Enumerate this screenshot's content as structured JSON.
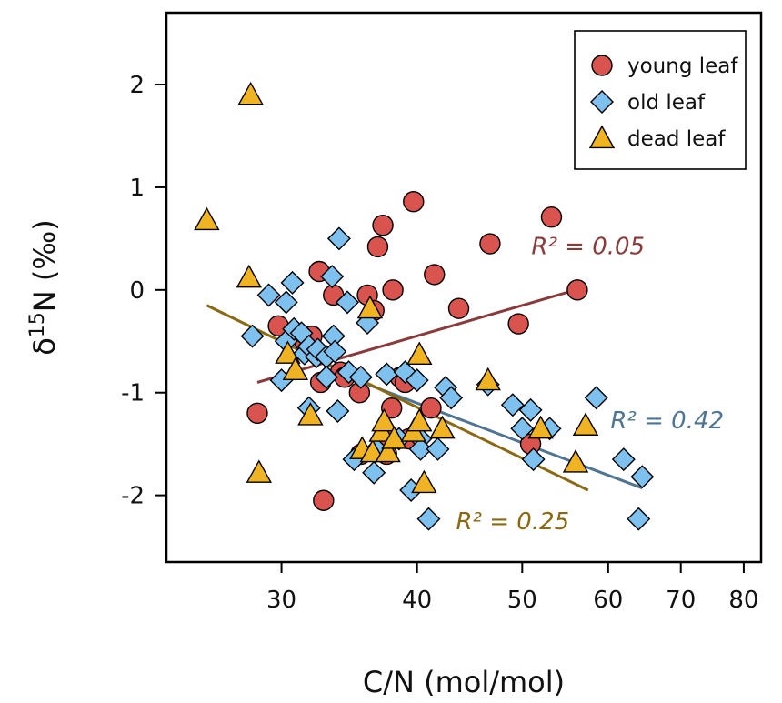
{
  "chart_data": {
    "type": "scatter",
    "xlabel": "C/N (mol/mol)",
    "ylabel_parts": [
      "δ",
      "15",
      "N (‰)"
    ],
    "x_scale": "log",
    "xlim": [
      23.5,
      83
    ],
    "ylim": [
      -2.65,
      2.7
    ],
    "x_ticks": [
      30,
      40,
      50,
      60,
      70,
      80
    ],
    "y_ticks": [
      2,
      1,
      0,
      -1,
      -2
    ],
    "legend_position": "top-right",
    "series": [
      {
        "name": "young leaf",
        "marker": "circle",
        "color": "#d9534f",
        "points": [
          [
            28.5,
            -1.2
          ],
          [
            29.8,
            -0.35
          ],
          [
            31.5,
            -0.5
          ],
          [
            32.0,
            -0.45
          ],
          [
            32.5,
            0.18
          ],
          [
            32.6,
            -0.9
          ],
          [
            32.8,
            -2.05
          ],
          [
            33.5,
            -0.05
          ],
          [
            34.0,
            -0.8
          ],
          [
            34.3,
            -0.85
          ],
          [
            35.4,
            -1.0
          ],
          [
            35.5,
            -1.6
          ],
          [
            36.0,
            -0.05
          ],
          [
            36.5,
            -0.2
          ],
          [
            36.8,
            0.42
          ],
          [
            37.2,
            0.63
          ],
          [
            37.5,
            -1.6
          ],
          [
            37.7,
            -1.45
          ],
          [
            37.9,
            -1.15
          ],
          [
            38.0,
            0.0
          ],
          [
            38.6,
            -0.85
          ],
          [
            39.0,
            -0.9
          ],
          [
            39.3,
            -1.45
          ],
          [
            39.7,
            0.86
          ],
          [
            41.2,
            -1.15
          ],
          [
            41.5,
            0.15
          ],
          [
            43.7,
            -0.18
          ],
          [
            46.7,
            0.45
          ],
          [
            49.6,
            -0.33
          ],
          [
            50.9,
            -1.5
          ],
          [
            53.2,
            0.71
          ],
          [
            56.2,
            0.0
          ]
        ]
      },
      {
        "name": "old leaf",
        "marker": "diamond",
        "color": "#7ec0ee",
        "points": [
          [
            28.2,
            -0.45
          ],
          [
            29.2,
            -0.05
          ],
          [
            30.0,
            -0.88
          ],
          [
            30.3,
            -0.5
          ],
          [
            30.3,
            -0.12
          ],
          [
            30.7,
            0.07
          ],
          [
            30.8,
            -0.38
          ],
          [
            31.3,
            -0.42
          ],
          [
            31.5,
            -0.62
          ],
          [
            31.8,
            -0.55
          ],
          [
            31.8,
            -1.15
          ],
          [
            32.3,
            -0.65
          ],
          [
            32.4,
            -0.58
          ],
          [
            33.0,
            -0.65
          ],
          [
            33.0,
            -0.85
          ],
          [
            33.4,
            0.13
          ],
          [
            33.5,
            -0.45
          ],
          [
            33.6,
            -0.6
          ],
          [
            33.8,
            -1.18
          ],
          [
            33.9,
            0.5
          ],
          [
            34.5,
            -0.12
          ],
          [
            34.6,
            -0.8
          ],
          [
            35.0,
            -1.65
          ],
          [
            35.5,
            -0.85
          ],
          [
            36.0,
            -0.32
          ],
          [
            36.5,
            -1.78
          ],
          [
            36.7,
            -1.55
          ],
          [
            37.5,
            -0.82
          ],
          [
            38.5,
            -1.45
          ],
          [
            39.0,
            -0.8
          ],
          [
            39.5,
            -1.95
          ],
          [
            40.0,
            -0.88
          ],
          [
            40.3,
            -1.45
          ],
          [
            40.3,
            -1.55
          ],
          [
            41.0,
            -2.23
          ],
          [
            41.8,
            -1.55
          ],
          [
            42.5,
            -0.95
          ],
          [
            43.0,
            -1.05
          ],
          [
            46.5,
            -0.92
          ],
          [
            49.0,
            -1.12
          ],
          [
            50.0,
            -1.35
          ],
          [
            50.9,
            -1.17
          ],
          [
            51.2,
            -1.65
          ],
          [
            53.0,
            -1.35
          ],
          [
            58.5,
            -1.05
          ],
          [
            62.0,
            -1.65
          ],
          [
            64.0,
            -2.23
          ],
          [
            64.5,
            -1.82
          ]
        ]
      },
      {
        "name": "dead leaf",
        "marker": "triangle",
        "color": "#f0b323",
        "points": [
          [
            25.6,
            0.68
          ],
          [
            28.0,
            0.12
          ],
          [
            28.1,
            1.9
          ],
          [
            28.6,
            -1.78
          ],
          [
            30.4,
            -0.62
          ],
          [
            30.9,
            -0.78
          ],
          [
            31.9,
            -1.22
          ],
          [
            35.6,
            -1.55
          ],
          [
            36.2,
            -0.18
          ],
          [
            36.4,
            -1.58
          ],
          [
            37.1,
            -1.38
          ],
          [
            37.3,
            -1.28
          ],
          [
            37.6,
            -1.58
          ],
          [
            38.1,
            -1.45
          ],
          [
            39.7,
            -1.38
          ],
          [
            40.2,
            -0.63
          ],
          [
            40.2,
            -1.28
          ],
          [
            40.6,
            -1.88
          ],
          [
            42.2,
            -1.35
          ],
          [
            46.5,
            -0.88
          ],
          [
            52.0,
            -1.35
          ],
          [
            56.0,
            -1.68
          ],
          [
            57.2,
            -1.32
          ]
        ]
      }
    ],
    "fits": [
      {
        "series": "young leaf",
        "x": [
          28.5,
          56.0
        ],
        "y": [
          -0.9,
          0.0
        ],
        "color": "#8b3a3a",
        "label": "R² = 0.05",
        "label_at": [
          57.5,
          0.35
        ]
      },
      {
        "series": "old leaf",
        "x": [
          34.0,
          64.5
        ],
        "y": [
          -0.82,
          -1.93
        ],
        "color": "#4f7592",
        "label": "R² = 0.42",
        "label_at": [
          68.0,
          -1.35
        ]
      },
      {
        "series": "dead leaf",
        "x": [
          25.6,
          57.5
        ],
        "y": [
          -0.15,
          -1.95
        ],
        "color": "#8b6914",
        "label": "R² = 0.25",
        "label_at": [
          49.0,
          -2.33
        ]
      }
    ]
  }
}
